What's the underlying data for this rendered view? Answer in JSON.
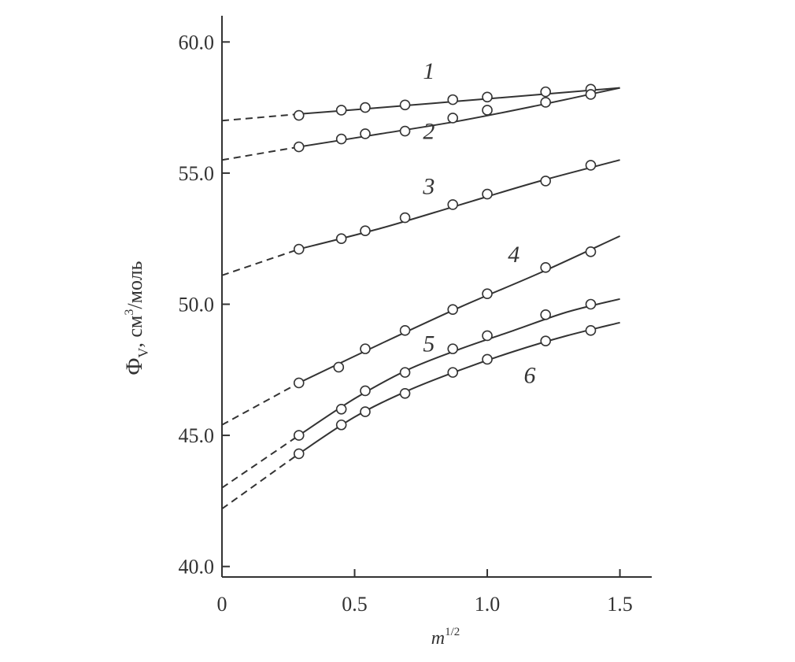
{
  "chart_data": {
    "type": "line",
    "xlabel": "m",
    "xlabel_sup": "1/2",
    "ylabel": "Φ",
    "ylabel_sub": "V",
    "ylabel_unit_pre": ", см",
    "ylabel_unit_sup": "3",
    "ylabel_unit_post": "/моль",
    "xlim": [
      0,
      1.62
    ],
    "ylim": [
      39.6,
      61.0
    ],
    "xticks": [
      {
        "value": 0,
        "label": "0"
      },
      {
        "value": 0.5,
        "label": "0.5"
      },
      {
        "value": 1.0,
        "label": "1.0"
      },
      {
        "value": 1.5,
        "label": "1.5"
      }
    ],
    "yticks": [
      {
        "value": 40,
        "label": "40.0"
      },
      {
        "value": 45,
        "label": "45.0"
      },
      {
        "value": 50,
        "label": "50.0"
      },
      {
        "value": 55,
        "label": "55.0"
      },
      {
        "value": 60,
        "label": "60.0"
      }
    ],
    "grid": false,
    "series": [
      {
        "name": "1",
        "intercept": 57.0,
        "points": [
          [
            0.29,
            57.2
          ],
          [
            0.45,
            57.4
          ],
          [
            0.54,
            57.5
          ],
          [
            0.69,
            57.6
          ],
          [
            0.87,
            57.8
          ],
          [
            1.0,
            57.9
          ],
          [
            1.22,
            58.1
          ],
          [
            1.39,
            58.2
          ]
        ],
        "curve": [
          [
            0.29,
            57.25
          ],
          [
            0.6,
            57.5
          ],
          [
            0.9,
            57.75
          ],
          [
            1.2,
            58.0
          ],
          [
            1.5,
            58.25
          ]
        ]
      },
      {
        "name": "2",
        "intercept": 55.5,
        "points": [
          [
            0.29,
            56.0
          ],
          [
            0.45,
            56.3
          ],
          [
            0.54,
            56.5
          ],
          [
            0.69,
            56.6
          ],
          [
            0.87,
            57.1
          ],
          [
            1.0,
            57.4
          ],
          [
            1.22,
            57.7
          ],
          [
            1.39,
            58.0
          ]
        ],
        "curve": [
          [
            0.29,
            56.0
          ],
          [
            0.6,
            56.5
          ],
          [
            0.9,
            57.0
          ],
          [
            1.2,
            57.6
          ],
          [
            1.5,
            58.25
          ]
        ]
      },
      {
        "name": "3",
        "intercept": 51.1,
        "points": [
          [
            0.29,
            52.1
          ],
          [
            0.45,
            52.5
          ],
          [
            0.54,
            52.8
          ],
          [
            0.69,
            53.3
          ],
          [
            0.87,
            53.8
          ],
          [
            1.0,
            54.2
          ],
          [
            1.22,
            54.7
          ],
          [
            1.39,
            55.3
          ]
        ],
        "curve": [
          [
            0.29,
            52.1
          ],
          [
            0.6,
            52.9
          ],
          [
            0.9,
            53.8
          ],
          [
            1.2,
            54.7
          ],
          [
            1.5,
            55.5
          ]
        ]
      },
      {
        "name": "4",
        "intercept": 45.4,
        "points": [
          [
            0.29,
            47.0
          ],
          [
            0.44,
            47.6
          ],
          [
            0.54,
            48.3
          ],
          [
            0.69,
            49.0
          ],
          [
            0.87,
            49.8
          ],
          [
            1.0,
            50.4
          ],
          [
            1.22,
            51.4
          ],
          [
            1.39,
            52.0
          ]
        ],
        "curve": [
          [
            0.29,
            47.0
          ],
          [
            0.6,
            48.5
          ],
          [
            0.9,
            49.9
          ],
          [
            1.2,
            51.2
          ],
          [
            1.5,
            52.6
          ]
        ]
      },
      {
        "name": "5",
        "intercept": 43.0,
        "points": [
          [
            0.29,
            45.0
          ],
          [
            0.45,
            46.0
          ],
          [
            0.54,
            46.7
          ],
          [
            0.69,
            47.4
          ],
          [
            0.87,
            48.3
          ],
          [
            1.0,
            48.8
          ],
          [
            1.22,
            49.6
          ],
          [
            1.39,
            50.0
          ]
        ],
        "curve": [
          [
            0.29,
            45.0
          ],
          [
            0.5,
            46.4
          ],
          [
            0.7,
            47.5
          ],
          [
            0.9,
            48.3
          ],
          [
            1.1,
            49.0
          ],
          [
            1.3,
            49.7
          ],
          [
            1.5,
            50.2
          ]
        ]
      },
      {
        "name": "6",
        "intercept": 42.2,
        "points": [
          [
            0.29,
            44.3
          ],
          [
            0.45,
            45.4
          ],
          [
            0.54,
            45.9
          ],
          [
            0.69,
            46.6
          ],
          [
            0.87,
            47.4
          ],
          [
            1.0,
            47.9
          ],
          [
            1.22,
            48.6
          ],
          [
            1.39,
            49.0
          ]
        ],
        "curve": [
          [
            0.29,
            44.3
          ],
          [
            0.5,
            45.7
          ],
          [
            0.7,
            46.7
          ],
          [
            0.9,
            47.5
          ],
          [
            1.1,
            48.2
          ],
          [
            1.3,
            48.8
          ],
          [
            1.5,
            49.3
          ]
        ]
      }
    ],
    "series_labels": [
      {
        "text": "1",
        "x": 0.78,
        "y": 58.6
      },
      {
        "text": "2",
        "x": 0.78,
        "y": 56.3
      },
      {
        "text": "3",
        "x": 0.78,
        "y": 54.2
      },
      {
        "text": "4",
        "x": 1.1,
        "y": 51.6
      },
      {
        "text": "5",
        "x": 0.78,
        "y": 48.2
      },
      {
        "text": "6",
        "x": 1.16,
        "y": 47.0
      }
    ],
    "colors": {
      "line": "#333333",
      "marker_fill": "#ffffff",
      "marker_stroke": "#333333"
    }
  }
}
